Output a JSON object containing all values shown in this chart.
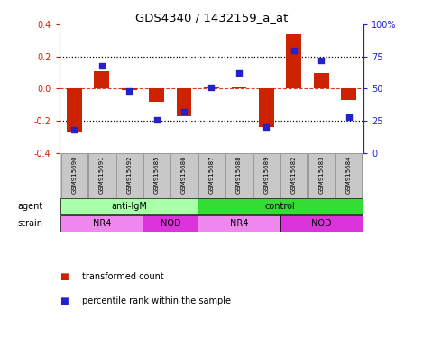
{
  "title": "GDS4340 / 1432159_a_at",
  "samples": [
    "GSM915690",
    "GSM915691",
    "GSM915692",
    "GSM915685",
    "GSM915686",
    "GSM915687",
    "GSM915688",
    "GSM915689",
    "GSM915682",
    "GSM915683",
    "GSM915684"
  ],
  "bar_values": [
    -0.27,
    0.11,
    -0.01,
    -0.08,
    -0.17,
    0.01,
    0.01,
    -0.24,
    0.34,
    0.1,
    -0.07
  ],
  "dot_values": [
    18,
    68,
    48,
    26,
    32,
    51,
    62,
    20,
    80,
    72,
    28
  ],
  "bar_color": "#cc2200",
  "dot_color": "#2222cc",
  "ylim_left": [
    -0.4,
    0.4
  ],
  "ylim_right": [
    0,
    100
  ],
  "yticks_left": [
    -0.4,
    -0.2,
    0.0,
    0.2,
    0.4
  ],
  "yticks_right": [
    0,
    25,
    50,
    75,
    100
  ],
  "ytick_labels_right": [
    "0",
    "25",
    "50",
    "75",
    "100%"
  ],
  "dotted_lines_black": [
    0.2,
    -0.2
  ],
  "zero_line_color": "#cc2200",
  "agent_groups": [
    {
      "label": "anti-IgM",
      "start": 0,
      "end": 5,
      "color": "#aaffaa"
    },
    {
      "label": "control",
      "start": 5,
      "end": 11,
      "color": "#33dd33"
    }
  ],
  "strain_groups": [
    {
      "label": "NR4",
      "start": 0,
      "end": 3,
      "color": "#ee88ee"
    },
    {
      "label": "NOD",
      "start": 3,
      "end": 5,
      "color": "#dd33dd"
    },
    {
      "label": "NR4",
      "start": 5,
      "end": 8,
      "color": "#ee88ee"
    },
    {
      "label": "NOD",
      "start": 8,
      "end": 11,
      "color": "#dd33dd"
    }
  ],
  "legend_items": [
    {
      "label": "transformed count",
      "color": "#cc2200"
    },
    {
      "label": "percentile rank within the sample",
      "color": "#2222cc"
    }
  ],
  "bar_width": 0.55,
  "label_bg": "#c8c8c8",
  "label_border": "#888888"
}
